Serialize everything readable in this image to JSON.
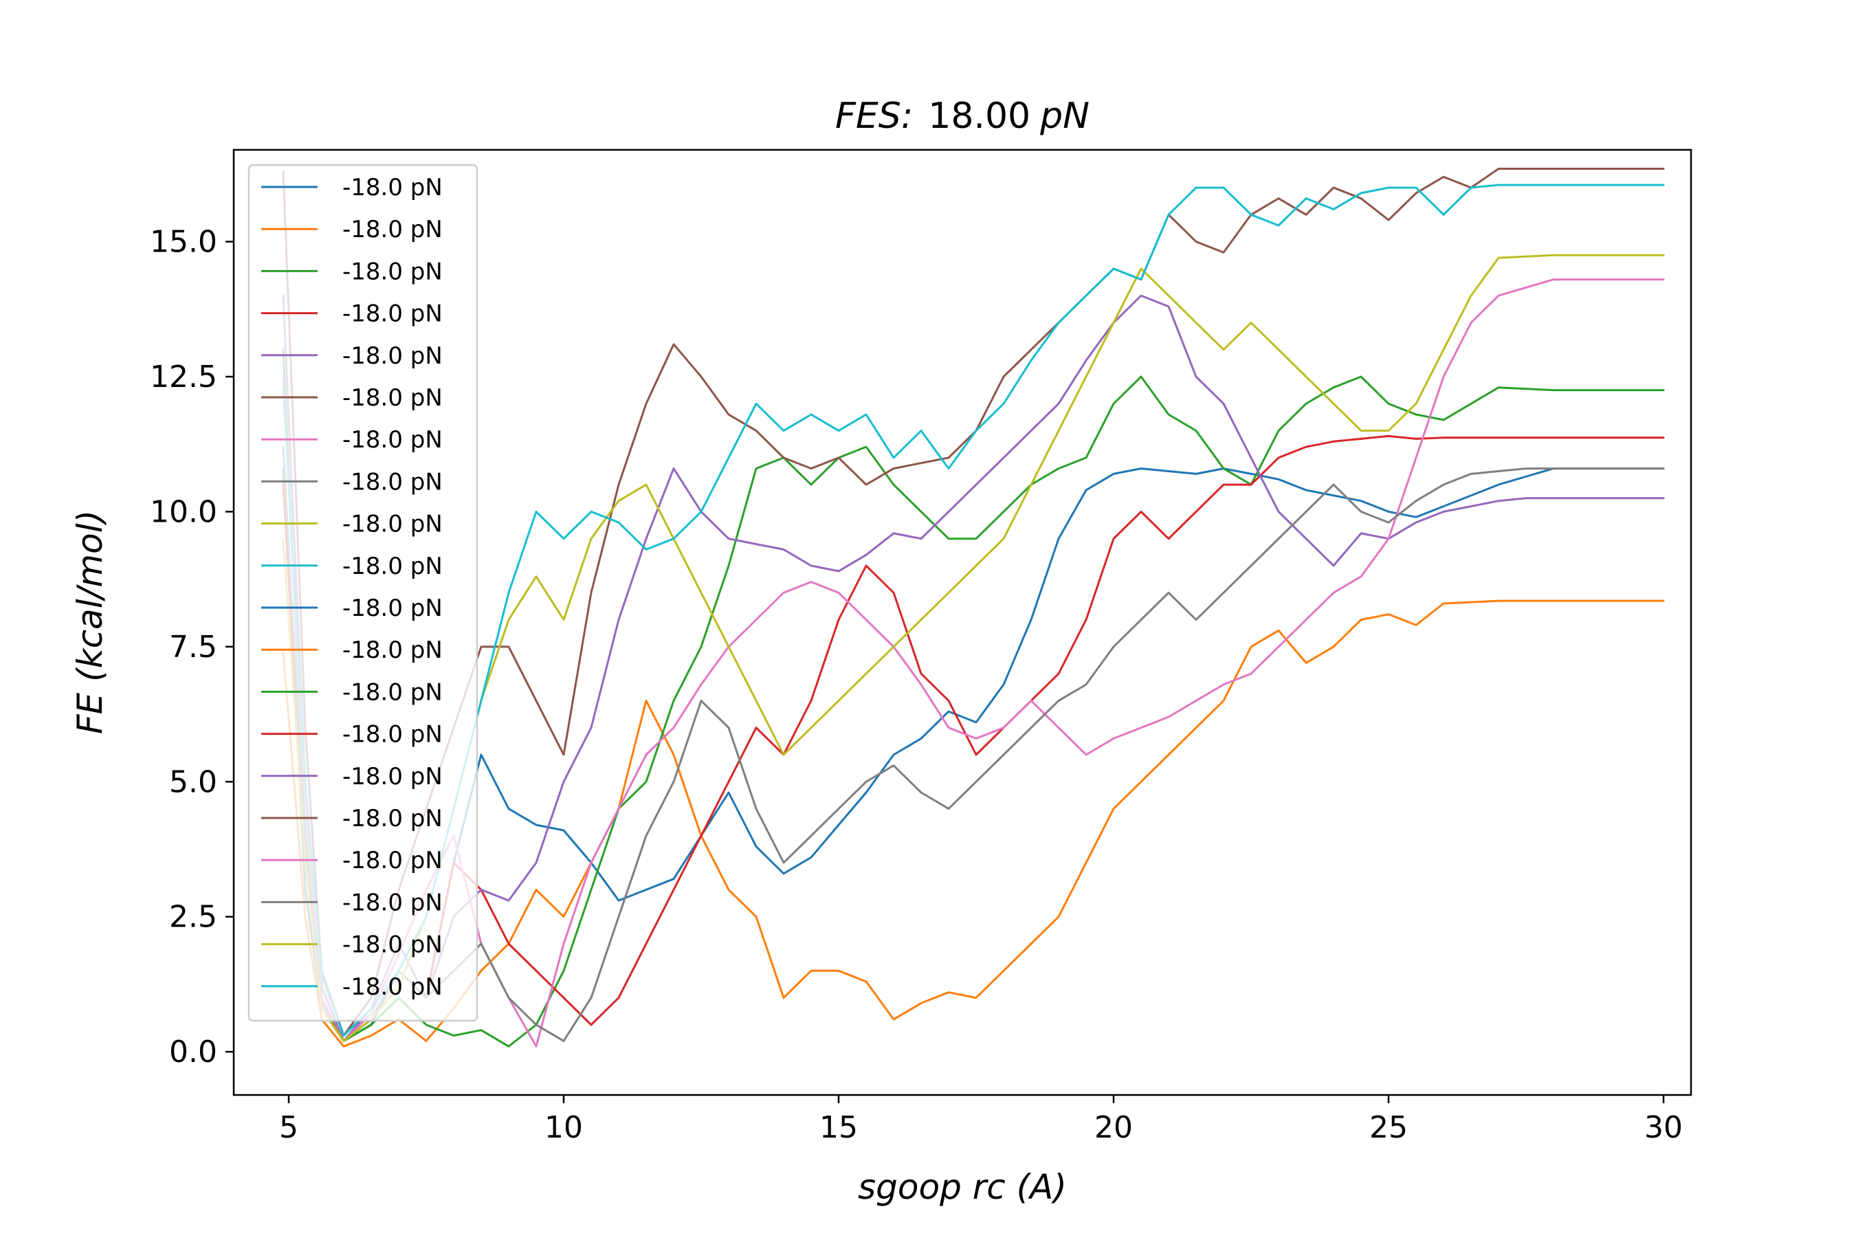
{
  "chart_data": {
    "type": "line",
    "title_italic": "FES:",
    "title_value": "18.00",
    "title_unit": "pN",
    "xlabel": "sgoop rc (A)",
    "ylabel": "FE (kcal/mol)",
    "xlim": [
      4.0,
      30.5
    ],
    "ylim": [
      -0.8,
      16.7
    ],
    "xticks": [
      5,
      10,
      15,
      20,
      25,
      30
    ],
    "xtick_labels": [
      "5",
      "10",
      "15",
      "20",
      "25",
      "30"
    ],
    "yticks": [
      0.0,
      2.5,
      5.0,
      7.5,
      10.0,
      12.5,
      15.0
    ],
    "ytick_labels": [
      "0.0",
      "2.5",
      "5.0",
      "7.5",
      "10.0",
      "12.5",
      "15.0"
    ],
    "grid": false,
    "legend_position": "top-left",
    "series": [
      {
        "name": "-18.0 pN",
        "color": "#1f77b4",
        "x": [
          4.9,
          5.3,
          5.6,
          6.0,
          6.5,
          7.0,
          7.5,
          8.0,
          8.5,
          9.0,
          9.5,
          10.0,
          10.5,
          11.0,
          11.5,
          12.0,
          12.5,
          13.0,
          13.5,
          14.0,
          14.5,
          15.0,
          15.5,
          16.0,
          16.5,
          17.0,
          17.5,
          18.0,
          18.5,
          19.0,
          19.5,
          20.0,
          20.5,
          21.0,
          21.5,
          22.0,
          22.5,
          23.0,
          23.5,
          24.0,
          24.5,
          25.0,
          25.5,
          26.0,
          26.5,
          27.0,
          28.0,
          30.0
        ],
        "y": [
          10.8,
          3.0,
          0.8,
          0.2,
          0.5,
          1.5,
          1.0,
          3.5,
          5.5,
          4.5,
          4.2,
          4.1,
          3.5,
          2.8,
          3.0,
          3.2,
          4.0,
          4.8,
          3.8,
          3.3,
          3.6,
          4.2,
          4.8,
          5.5,
          5.8,
          6.3,
          6.1,
          6.8,
          8.0,
          9.5,
          10.4,
          10.7,
          10.8,
          10.75,
          10.7,
          10.8,
          10.7,
          10.6,
          10.4,
          10.3,
          10.2,
          10.0,
          9.9,
          10.1,
          10.3,
          10.5,
          10.8,
          10.8
        ]
      },
      {
        "name": "-18.0 pN",
        "color": "#ff7f0e",
        "x": [
          4.9,
          5.3,
          5.6,
          6.0,
          6.5,
          7.0,
          7.5,
          8.0,
          8.5,
          9.0,
          9.5,
          10.0,
          10.5,
          11.0,
          11.5,
          12.0,
          12.5,
          13.0,
          13.5,
          14.0,
          14.5,
          15.0,
          15.5,
          16.0,
          16.5,
          17.0,
          17.5,
          18.0,
          18.5,
          19.0,
          19.5,
          20.0,
          20.5,
          21.0,
          21.5,
          22.0,
          22.5,
          23.0,
          23.5,
          24.0,
          24.5,
          25.0,
          25.5,
          26.0,
          27.0,
          30.0
        ],
        "y": [
          7.4,
          2.5,
          0.6,
          0.1,
          0.3,
          0.6,
          0.2,
          0.8,
          1.5,
          2.0,
          3.0,
          2.5,
          3.5,
          4.5,
          6.5,
          5.5,
          4.0,
          3.0,
          2.5,
          1.0,
          1.5,
          1.5,
          1.3,
          0.6,
          0.9,
          1.1,
          1.0,
          1.5,
          2.0,
          2.5,
          3.5,
          4.5,
          5.0,
          5.5,
          6.0,
          6.5,
          7.5,
          7.8,
          7.2,
          7.5,
          8.0,
          8.1,
          7.9,
          8.3,
          8.35,
          8.35
        ]
      },
      {
        "name": "-18.0 pN",
        "color": "#2ca02c",
        "x": [
          4.9,
          5.3,
          5.6,
          6.0,
          6.5,
          7.0,
          7.5,
          8.0,
          8.5,
          9.0,
          9.5,
          10.0,
          10.5,
          11.0,
          11.5,
          12.0,
          12.5,
          13.0,
          13.5,
          14.0,
          14.5,
          15.0,
          15.5,
          16.0,
          16.5,
          17.0,
          17.5,
          18.0,
          18.5,
          19.0,
          19.5,
          20.0,
          20.5,
          21.0,
          21.5,
          22.0,
          22.5,
          23.0,
          23.5,
          24.0,
          24.5,
          25.0,
          25.5,
          26.0,
          26.5,
          27.0,
          28.0,
          30.0
        ],
        "y": [
          13.0,
          4.0,
          1.0,
          0.2,
          0.5,
          1.0,
          0.5,
          0.3,
          0.4,
          0.1,
          0.5,
          1.5,
          3.0,
          4.5,
          5.0,
          6.5,
          7.5,
          9.0,
          10.8,
          11.0,
          10.5,
          11.0,
          11.2,
          10.5,
          10.0,
          9.5,
          9.5,
          10.0,
          10.5,
          10.8,
          11.0,
          12.0,
          12.5,
          11.8,
          11.5,
          10.8,
          10.5,
          11.5,
          12.0,
          12.3,
          12.5,
          12.0,
          11.8,
          11.7,
          12.0,
          12.3,
          12.25,
          12.25
        ]
      },
      {
        "name": "-18.0 pN",
        "color": "#d62728",
        "x": [
          4.9,
          5.3,
          5.6,
          6.0,
          6.5,
          7.0,
          7.5,
          8.0,
          8.5,
          9.0,
          9.5,
          10.0,
          10.5,
          11.0,
          11.5,
          12.0,
          12.5,
          13.0,
          13.5,
          14.0,
          14.5,
          15.0,
          15.5,
          16.0,
          16.5,
          17.0,
          17.5,
          18.0,
          18.5,
          19.0,
          19.5,
          20.0,
          20.5,
          21.0,
          21.5,
          22.0,
          22.5,
          23.0,
          23.5,
          24.0,
          24.5,
          25.0,
          25.5,
          26.0,
          27.0,
          30.0
        ],
        "y": [
          10.5,
          3.5,
          0.8,
          0.2,
          0.6,
          1.5,
          1.0,
          3.5,
          3.0,
          2.0,
          1.5,
          1.0,
          0.5,
          1.0,
          2.0,
          3.0,
          4.0,
          5.0,
          6.0,
          5.5,
          6.5,
          8.0,
          9.0,
          8.5,
          7.0,
          6.5,
          5.5,
          6.0,
          6.5,
          7.0,
          8.0,
          9.5,
          10.0,
          9.5,
          10.0,
          10.5,
          10.5,
          11.0,
          11.2,
          11.3,
          11.35,
          11.4,
          11.35,
          11.37,
          11.37,
          11.37
        ]
      },
      {
        "name": "-18.0 pN",
        "color": "#9467bd",
        "x": [
          4.9,
          5.3,
          5.6,
          6.0,
          6.5,
          7.0,
          7.5,
          8.0,
          8.5,
          9.0,
          9.5,
          10.0,
          10.5,
          11.0,
          11.5,
          12.0,
          12.5,
          13.0,
          13.5,
          14.0,
          14.5,
          15.0,
          15.5,
          16.0,
          16.5,
          17.0,
          17.5,
          18.0,
          18.5,
          19.0,
          19.5,
          20.0,
          20.5,
          21.0,
          21.5,
          22.0,
          22.5,
          23.0,
          23.5,
          24.0,
          24.5,
          25.0,
          25.5,
          26.0,
          26.5,
          27.0,
          27.5,
          30.0
        ],
        "y": [
          14.0,
          5.0,
          1.2,
          0.2,
          0.8,
          2.0,
          1.0,
          2.5,
          3.0,
          2.8,
          3.5,
          5.0,
          6.0,
          8.0,
          9.5,
          10.8,
          10.0,
          9.5,
          9.4,
          9.3,
          9.0,
          8.9,
          9.2,
          9.6,
          9.5,
          10.0,
          10.5,
          11.0,
          11.5,
          12.0,
          12.8,
          13.5,
          14.0,
          13.8,
          12.5,
          12.0,
          11.0,
          10.0,
          9.5,
          9.0,
          9.6,
          9.5,
          9.8,
          10.0,
          10.1,
          10.2,
          10.25,
          10.25
        ]
      },
      {
        "name": "-18.0 pN",
        "color": "#8c564b",
        "x": [
          4.9,
          5.3,
          5.6,
          6.0,
          6.5,
          7.0,
          7.5,
          8.0,
          8.5,
          9.0,
          9.5,
          10.0,
          10.5,
          11.0,
          11.5,
          12.0,
          12.5,
          13.0,
          13.5,
          14.0,
          14.5,
          15.0,
          15.5,
          16.0,
          16.5,
          17.0,
          17.5,
          18.0,
          18.5,
          19.0,
          19.5,
          20.0,
          20.5,
          21.0,
          21.5,
          22.0,
          22.5,
          23.0,
          23.5,
          24.0,
          24.5,
          25.0,
          25.5,
          26.0,
          26.5,
          27.0,
          30.0
        ],
        "y": [
          16.3,
          6.0,
          1.5,
          0.3,
          1.0,
          3.0,
          4.5,
          6.0,
          7.5,
          7.5,
          6.5,
          5.5,
          8.5,
          10.5,
          12.0,
          13.1,
          12.5,
          11.8,
          11.5,
          11.0,
          10.8,
          11.0,
          10.5,
          10.8,
          10.9,
          11.0,
          11.5,
          12.5,
          13.0,
          13.5,
          14.0,
          14.5,
          14.3,
          15.5,
          15.0,
          14.8,
          15.5,
          15.8,
          15.5,
          16.0,
          15.8,
          15.4,
          15.9,
          16.2,
          16.0,
          16.35,
          16.35
        ]
      },
      {
        "name": "-18.0 pN",
        "color": "#e377c2",
        "x": [
          4.9,
          5.3,
          5.6,
          6.0,
          6.5,
          7.0,
          7.5,
          8.0,
          8.5,
          9.0,
          9.5,
          10.0,
          10.5,
          11.0,
          11.5,
          12.0,
          12.5,
          13.0,
          13.5,
          14.0,
          14.5,
          15.0,
          15.5,
          16.0,
          16.5,
          17.0,
          17.5,
          18.0,
          18.5,
          19.0,
          19.5,
          20.0,
          20.5,
          21.0,
          21.5,
          22.0,
          22.5,
          23.0,
          23.5,
          24.0,
          24.5,
          25.0,
          25.5,
          26.0,
          26.5,
          27.0,
          28.0,
          30.0
        ],
        "y": [
          12.5,
          4.5,
          1.0,
          0.2,
          0.7,
          1.8,
          3.0,
          4.0,
          2.0,
          1.0,
          0.1,
          2.0,
          3.5,
          4.5,
          5.5,
          6.0,
          6.8,
          7.5,
          8.0,
          8.5,
          8.7,
          8.5,
          8.0,
          7.5,
          6.8,
          6.0,
          5.8,
          6.0,
          6.5,
          6.0,
          5.5,
          5.8,
          6.0,
          6.2,
          6.5,
          6.8,
          7.0,
          7.5,
          8.0,
          8.5,
          8.8,
          9.5,
          11.0,
          12.5,
          13.5,
          14.0,
          14.3,
          14.3
        ]
      },
      {
        "name": "-18.0 pN",
        "color": "#7f7f7f",
        "x": [
          4.9,
          5.3,
          5.6,
          6.0,
          6.5,
          7.0,
          7.5,
          8.0,
          8.5,
          9.0,
          9.5,
          10.0,
          10.5,
          11.0,
          11.5,
          12.0,
          12.5,
          13.0,
          13.5,
          14.0,
          14.5,
          15.0,
          15.5,
          16.0,
          16.5,
          17.0,
          17.5,
          18.0,
          18.5,
          19.0,
          19.5,
          20.0,
          20.5,
          21.0,
          21.5,
          22.0,
          22.5,
          23.0,
          23.5,
          24.0,
          24.5,
          25.0,
          25.5,
          26.0,
          26.5,
          27.0,
          27.5,
          30.0
        ],
        "y": [
          11.2,
          3.8,
          0.9,
          0.2,
          0.6,
          1.5,
          1.0,
          1.5,
          2.0,
          1.0,
          0.5,
          0.2,
          1.0,
          2.5,
          4.0,
          5.0,
          6.5,
          6.0,
          4.5,
          3.5,
          4.0,
          4.5,
          5.0,
          5.3,
          4.8,
          4.5,
          5.0,
          5.5,
          6.0,
          6.5,
          6.8,
          7.5,
          8.0,
          8.5,
          8.0,
          8.5,
          9.0,
          9.5,
          10.0,
          10.5,
          10.0,
          9.8,
          10.2,
          10.5,
          10.7,
          10.75,
          10.8,
          10.8
        ]
      },
      {
        "name": "-18.0 pN",
        "color": "#bcbd22",
        "x": [
          4.9,
          5.3,
          5.6,
          6.0,
          6.5,
          7.0,
          7.5,
          8.0,
          8.5,
          9.0,
          9.5,
          10.0,
          10.5,
          11.0,
          11.5,
          12.0,
          12.5,
          13.0,
          13.5,
          14.0,
          14.5,
          15.0,
          15.5,
          16.0,
          16.5,
          17.0,
          17.5,
          18.0,
          18.5,
          19.0,
          19.5,
          20.0,
          20.5,
          21.0,
          21.5,
          22.0,
          22.5,
          23.0,
          23.5,
          24.0,
          24.5,
          25.0,
          25.5,
          26.0,
          26.5,
          27.0,
          28.0,
          30.0
        ],
        "y": [
          9.5,
          3.5,
          0.8,
          0.2,
          0.6,
          1.2,
          2.5,
          4.5,
          6.5,
          8.0,
          8.8,
          8.0,
          9.5,
          10.2,
          10.5,
          9.5,
          8.5,
          7.5,
          6.5,
          5.5,
          6.0,
          6.5,
          7.0,
          7.5,
          8.0,
          8.5,
          9.0,
          9.5,
          10.5,
          11.5,
          12.5,
          13.5,
          14.5,
          14.0,
          13.5,
          13.0,
          13.5,
          13.0,
          12.5,
          12.0,
          11.5,
          11.5,
          12.0,
          13.0,
          14.0,
          14.7,
          14.75,
          14.75
        ]
      },
      {
        "name": "-18.0 pN",
        "color": "#17becf",
        "x": [
          4.9,
          5.3,
          5.6,
          6.0,
          6.5,
          7.0,
          7.5,
          8.0,
          8.5,
          9.0,
          9.5,
          10.0,
          10.5,
          11.0,
          11.5,
          12.0,
          12.5,
          13.0,
          13.5,
          14.0,
          14.5,
          15.0,
          15.5,
          16.0,
          16.5,
          17.0,
          17.5,
          18.0,
          18.5,
          19.0,
          19.5,
          20.0,
          20.5,
          21.0,
          21.5,
          22.0,
          22.5,
          23.0,
          23.5,
          24.0,
          24.5,
          25.0,
          25.5,
          26.0,
          26.5,
          27.0,
          30.0
        ],
        "y": [
          12.3,
          5.0,
          1.4,
          0.3,
          0.8,
          1.5,
          2.5,
          4.5,
          6.5,
          8.5,
          10.0,
          9.5,
          10.0,
          9.8,
          9.3,
          9.5,
          10.0,
          11.0,
          12.0,
          11.5,
          11.8,
          11.5,
          11.8,
          11.0,
          11.5,
          10.8,
          11.5,
          12.0,
          12.8,
          13.5,
          14.0,
          14.5,
          14.3,
          15.5,
          16.0,
          16.0,
          15.5,
          15.3,
          15.8,
          15.6,
          15.9,
          16.0,
          16.0,
          15.5,
          16.0,
          16.05,
          16.05
        ]
      }
    ]
  }
}
